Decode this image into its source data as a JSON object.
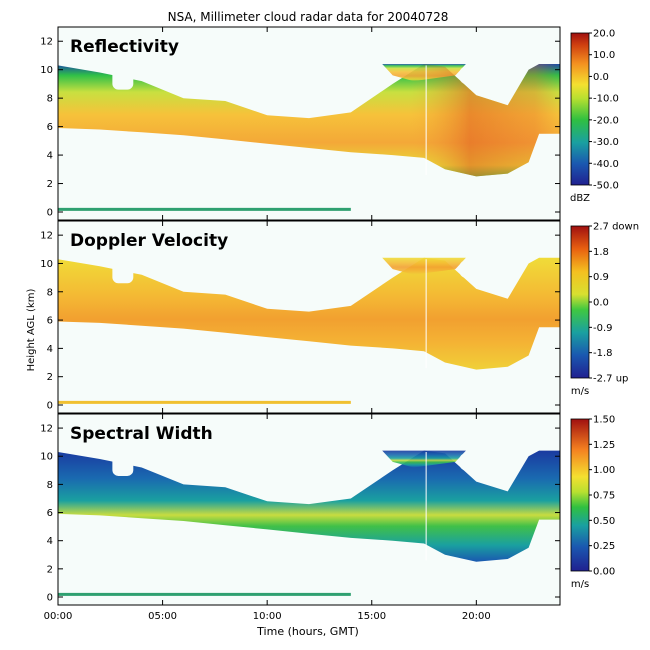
{
  "title": "NSA, Millimeter cloud radar data for 20040728",
  "xlabel": "Time (hours, GMT)",
  "ylabel": "Height AGL (km)",
  "chart_data": [
    {
      "type": "heatmap",
      "panel_title": "Reflectivity",
      "x_ticks": [
        "00:00",
        "05:00",
        "10:00",
        "15:00",
        "20:00"
      ],
      "x_range_hours": [
        0,
        24
      ],
      "y_ticks": [
        "0",
        "2",
        "4",
        "6",
        "8",
        "10",
        "12"
      ],
      "ylim_km": [
        0,
        13
      ],
      "colorbar": {
        "labels": [
          "20.0",
          "10.0",
          "0.0",
          "-10.0",
          "-20.0",
          "-30.0",
          "-40.0",
          "-50.0"
        ],
        "min": -50,
        "max": 20,
        "unit": "dBZ"
      },
      "cloud": {
        "time_h": [
          0,
          2,
          4,
          6,
          8,
          10,
          12,
          14,
          16,
          17.5,
          18.5,
          20,
          21.5,
          22.5,
          23,
          24
        ],
        "base_km": [
          5.9,
          5.8,
          5.6,
          5.4,
          5.1,
          4.8,
          4.5,
          4.2,
          4.0,
          3.8,
          3.0,
          2.5,
          2.7,
          3.5,
          5.5,
          5.5
        ],
        "top_km": [
          10.3,
          9.8,
          9.2,
          8.0,
          7.8,
          6.8,
          6.6,
          7.0,
          9.0,
          10.4,
          10.2,
          8.2,
          7.5,
          10.0,
          10.4,
          10.4
        ]
      }
    },
    {
      "type": "heatmap",
      "panel_title": "Doppler Velocity",
      "x_ticks": [
        "00:00",
        "05:00",
        "10:00",
        "15:00",
        "20:00"
      ],
      "x_range_hours": [
        0,
        24
      ],
      "y_ticks": [
        "0",
        "2",
        "4",
        "6",
        "8",
        "10",
        "12"
      ],
      "ylim_km": [
        0,
        13
      ],
      "colorbar": {
        "labels": [
          "2.7 down",
          "1.8",
          "0.9",
          "0.0",
          "-0.9",
          "-1.8",
          "-2.7 up"
        ],
        "min": -2.7,
        "max": 2.7,
        "unit": "m/s"
      }
    },
    {
      "type": "heatmap",
      "panel_title": "Spectral Width",
      "x_ticks": [
        "00:00",
        "05:00",
        "10:00",
        "15:00",
        "20:00"
      ],
      "x_range_hours": [
        0,
        24
      ],
      "y_ticks": [
        "0",
        "2",
        "4",
        "6",
        "8",
        "10",
        "12"
      ],
      "ylim_km": [
        0,
        13
      ],
      "colorbar": {
        "labels": [
          "1.50",
          "1.25",
          "1.00",
          "0.75",
          "0.50",
          "0.25",
          "0.00"
        ],
        "min": 0,
        "max": 1.5,
        "unit": "m/s"
      }
    }
  ],
  "colors": {
    "background": "#ffffff",
    "cloud_sky": "#f6fcfa",
    "reflectivity": [
      "#f2e24a",
      "#f7b73a",
      "#e8d838",
      "#8fdc3c",
      "#2fbf48",
      "#1a9a9a",
      "#1a3aa0"
    ],
    "velocity": [
      "#f0d030",
      "#f2a828",
      "#e07828",
      "#c83a20"
    ],
    "spectral": [
      "#1a3aa0",
      "#1a8aa0",
      "#2fbf48",
      "#a0dc40",
      "#f2d23a"
    ]
  }
}
